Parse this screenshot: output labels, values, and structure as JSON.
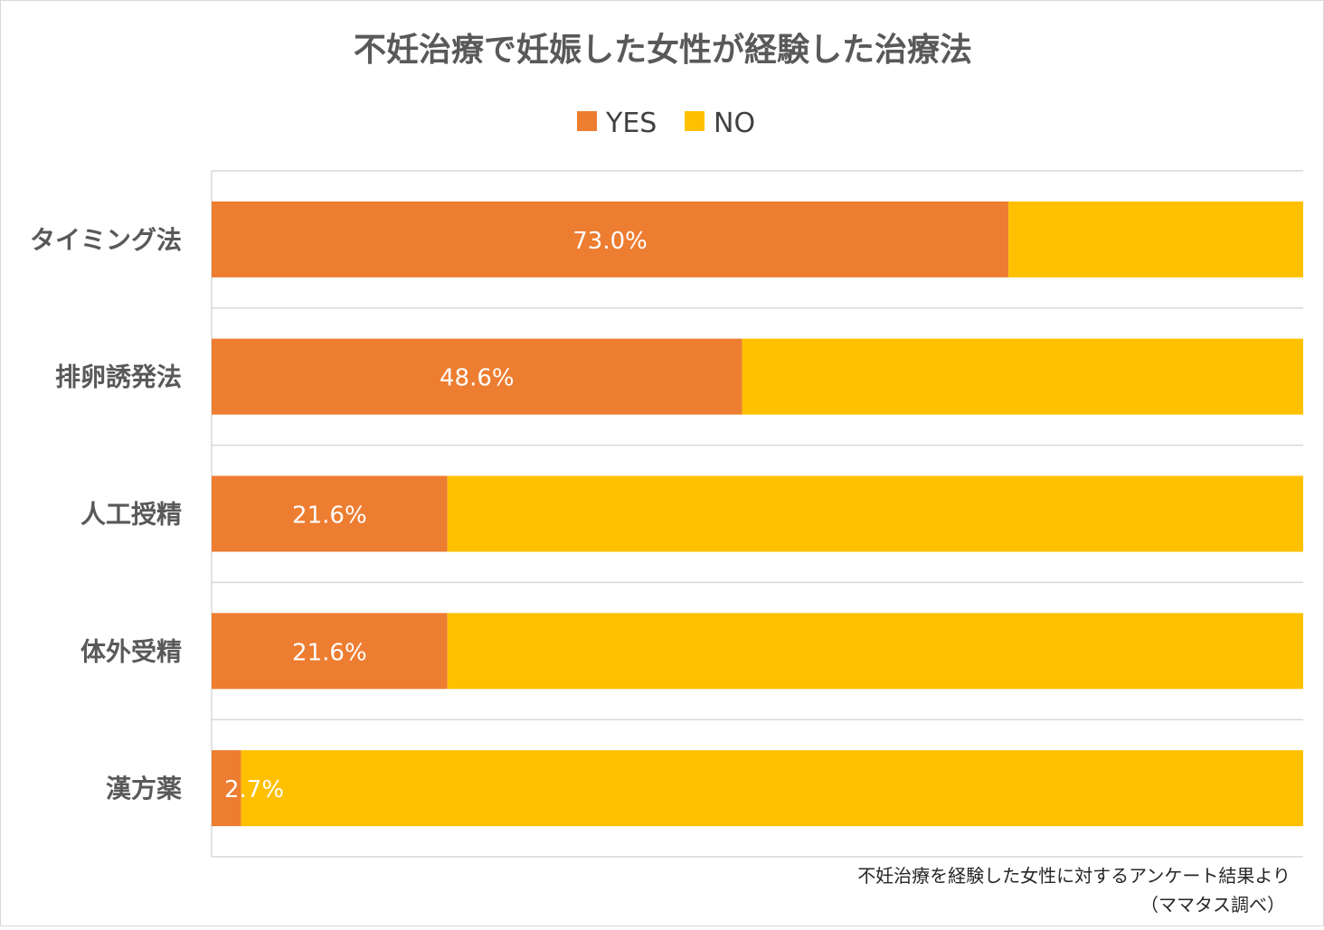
{
  "chart_data": {
    "type": "bar",
    "orientation": "horizontal",
    "stacked": true,
    "title": "不妊治療で妊娠した女性が経験した治療法",
    "categories": [
      "タイミング法",
      "排卵誘発法",
      "人工授精",
      "体外受精",
      "漢方薬"
    ],
    "series": [
      {
        "name": "YES",
        "values": [
          73.0,
          48.6,
          21.6,
          21.6,
          2.7
        ],
        "labels": [
          "73.0%",
          "48.6%",
          "21.6%",
          "21.6%",
          "2.7%"
        ]
      },
      {
        "name": "NO",
        "values": [
          27.0,
          51.4,
          78.4,
          78.4,
          97.3
        ]
      }
    ],
    "xlim": [
      0,
      100
    ],
    "grid": "horizontal",
    "legend": "top",
    "colors": {
      "YES": "#ED7D31",
      "NO": "#FFC000"
    },
    "footnote": [
      "不妊治療を経験した女性に対するアンケート結果より",
      "（ママタス調べ）"
    ]
  }
}
